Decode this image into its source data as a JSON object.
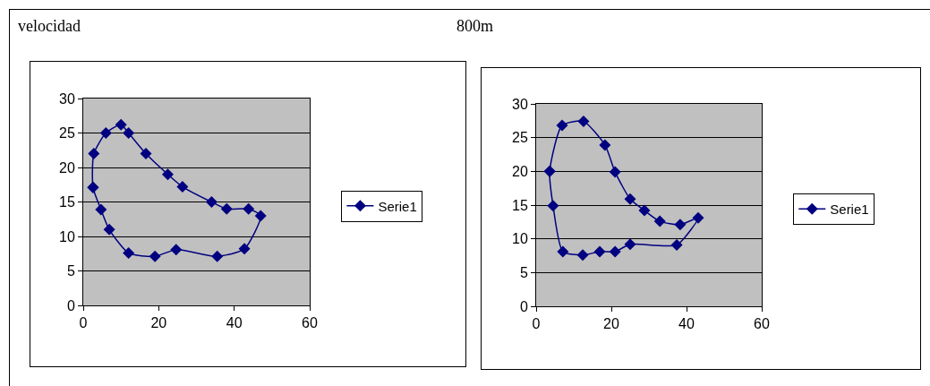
{
  "chart_data": [
    {
      "type": "scatter",
      "title": "velocidad",
      "x": [
        2.6,
        2.8,
        6,
        10,
        12,
        16.6,
        22.4,
        26.3,
        34,
        38,
        43.8,
        47,
        42.7,
        35.5,
        24.6,
        19,
        12,
        6.9,
        4.7,
        2.6
      ],
      "series": [
        {
          "name": "Serie1",
          "color": "#000080",
          "values": [
            17.1,
            22,
            25,
            26.2,
            25,
            22,
            19,
            17.2,
            15,
            14,
            14,
            13,
            8.2,
            7.1,
            8.1,
            7.1,
            7.6,
            11,
            13.9,
            17.1
          ]
        }
      ],
      "xlim": [
        0,
        60
      ],
      "xticks": [
        0,
        20,
        40,
        60
      ],
      "ylim": [
        0,
        30
      ],
      "yticks": [
        0,
        5,
        10,
        15,
        20,
        25,
        30
      ],
      "grid": "y",
      "legend": "right",
      "marker": "diamond",
      "line_style": "solid"
    },
    {
      "type": "scatter",
      "title": "800m",
      "x": [
        3.6,
        4.5,
        7.1,
        12.4,
        16.9,
        21,
        25,
        37.4,
        43.1,
        38.3,
        32.9,
        28.8,
        25,
        21,
        18.3,
        12.6,
        6.9,
        3.6
      ],
      "series": [
        {
          "name": "Serie1",
          "color": "#000080",
          "values": [
            20,
            14.9,
            8.1,
            7.6,
            8.1,
            8.1,
            9.2,
            9.1,
            13.1,
            12.1,
            12.6,
            14.2,
            15.9,
            19.9,
            23.9,
            27.4,
            26.8,
            20
          ]
        }
      ],
      "xlim": [
        0,
        60
      ],
      "xticks": [
        0,
        20,
        40,
        60
      ],
      "ylim": [
        0,
        30
      ],
      "yticks": [
        0,
        5,
        10,
        15,
        20,
        25,
        30
      ],
      "grid": "y",
      "legend": "right",
      "marker": "diamond",
      "line_style": "solid"
    }
  ]
}
